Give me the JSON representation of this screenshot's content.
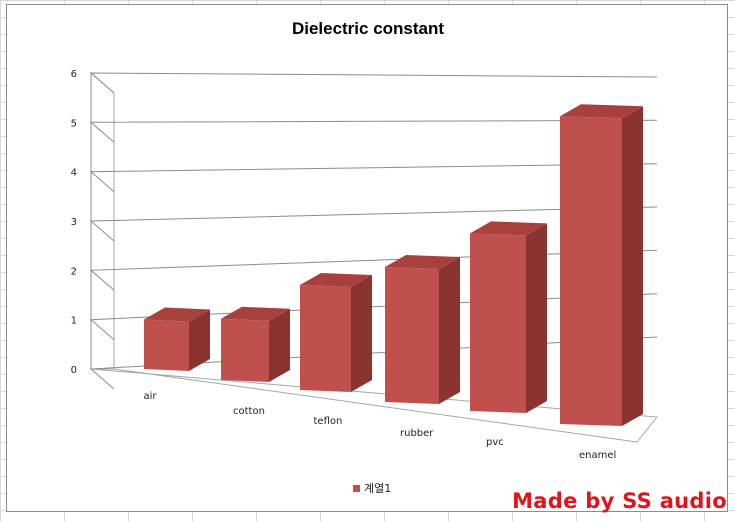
{
  "chart_data": {
    "type": "bar",
    "title": "Dielectric constant",
    "xlabel": "",
    "ylabel": "",
    "categories": [
      "air",
      "cotton",
      "teflon",
      "rubber",
      "pvc",
      "enamel"
    ],
    "series": [
      {
        "name": "계열1",
        "values": [
          1.0,
          1.2,
          2.0,
          2.5,
          3.2,
          5.4
        ],
        "color": "#c0504d"
      }
    ],
    "ylim": [
      0,
      6
    ],
    "yticks": [
      "0",
      "1",
      "2",
      "3",
      "4",
      "5",
      "6"
    ],
    "grid": true,
    "legend": "bottom",
    "style": "3d-column"
  },
  "watermark": "Made by SS audio"
}
